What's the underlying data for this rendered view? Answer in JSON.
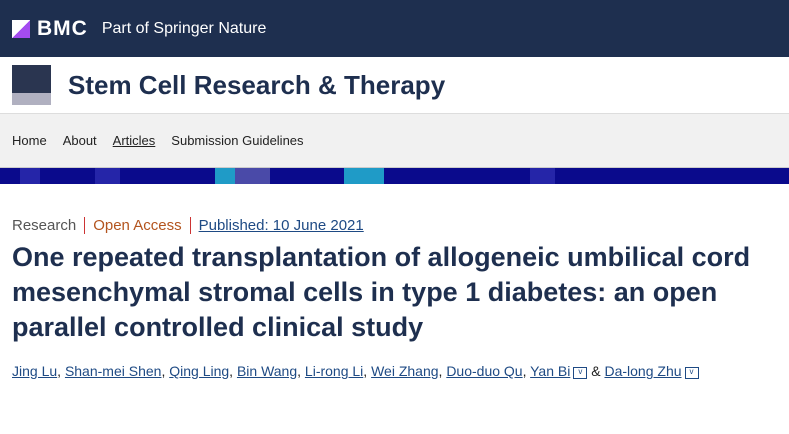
{
  "header": {
    "brand": "BMC",
    "tagline": "Part of Springer Nature"
  },
  "journal": {
    "title": "Stem Cell Research & Therapy"
  },
  "nav": {
    "items": [
      "Home",
      "About",
      "Articles",
      "Submission Guidelines"
    ]
  },
  "article": {
    "type": "Research",
    "access": "Open Access",
    "published": "Published: 10 June 2021",
    "title": "One repeated transplantation of allogeneic umbilical cord mesenchymal stromal cells in type 1 diabetes: an open parallel controlled clinical study",
    "authors": [
      "Jing Lu",
      "Shan-mei Shen",
      "Qing Ling",
      "Bin Wang",
      "Li-rong Li",
      "Wei Zhang",
      "Duo-duo Qu",
      "Yan Bi",
      "Da-long Zhu"
    ],
    "amp": "&"
  },
  "colors": {
    "header": "#1e2f4f",
    "access": "#b3541e",
    "link": "#1e4a84"
  }
}
